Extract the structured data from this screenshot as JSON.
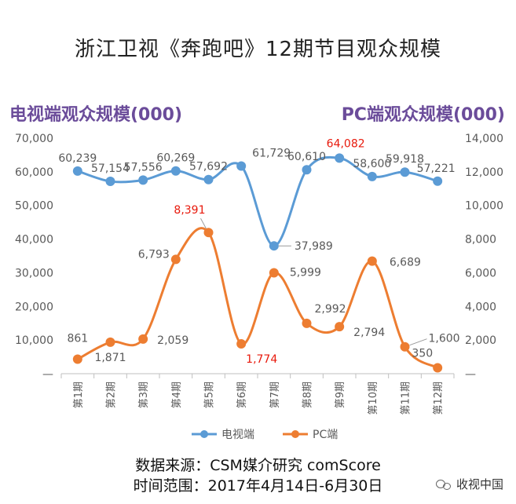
{
  "page": {
    "title": "浙江卫视《奔跑吧》12期节目观众规模",
    "left_axis_title": "电视端观众规模(000)",
    "right_axis_title": "PC端观众规模(000)",
    "source_line": "数据来源：CSM媒介研究 comScore",
    "period_line": "时间范围：2017年4月14日-6月30日",
    "watermark": "收视中国"
  },
  "colors": {
    "tv": "#5b9bd5",
    "pc": "#ed7d31",
    "highlight": "#e8190c",
    "label": "#595959",
    "axis_title": "#6b4c9a"
  },
  "chart_data": {
    "type": "line",
    "categories": [
      "第1期",
      "第2期",
      "第3期",
      "第4期",
      "第5期",
      "第6期",
      "第7期",
      "第8期",
      "第9期",
      "第10期",
      "第11期",
      "第12期"
    ],
    "series": [
      {
        "name": "电视端",
        "axis": "left",
        "values": [
          60239,
          57154,
          57556,
          60269,
          57692,
          61729,
          37989,
          60610,
          64082,
          58600,
          59918,
          57221
        ],
        "labels": [
          "60,239",
          "57,154",
          "57,556",
          "60,269",
          "57,692",
          "61,729",
          "37,989",
          "60,610",
          "64,082",
          "58,600",
          "59,918",
          "57,221"
        ],
        "highlight_index": 8
      },
      {
        "name": "PC端",
        "axis": "right",
        "values": [
          861,
          1871,
          2059,
          6793,
          8391,
          1774,
          5999,
          2992,
          2794,
          6689,
          1600,
          350
        ],
        "labels": [
          "861",
          "1,871",
          "2,059",
          "6,793",
          "8,391",
          "1,774",
          "5,999",
          "2,992",
          "2,794",
          "6,689",
          "1,600",
          "350"
        ],
        "highlight_indices": [
          4,
          5
        ]
      }
    ],
    "left_axis": {
      "ylim": [
        0,
        70000
      ],
      "ticks": [
        "—",
        "10,000",
        "20,000",
        "30,000",
        "40,000",
        "50,000",
        "60,000",
        "70,000"
      ]
    },
    "right_axis": {
      "ylim": [
        0,
        14000
      ],
      "ticks": [
        "—",
        "2,000",
        "4,000",
        "6,000",
        "8,000",
        "10,000",
        "12,000",
        "14,000"
      ]
    },
    "grid": false,
    "legend_position": "bottom"
  }
}
